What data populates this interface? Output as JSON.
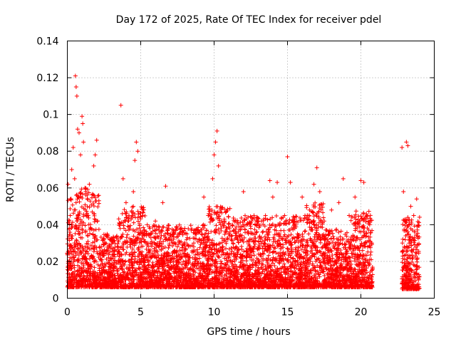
{
  "chart_data": {
    "type": "scatter",
    "title": "Day 172 of 2025, Rate Of TEC Index for receiver pdel",
    "xlabel": "GPS time / hours",
    "ylabel": "ROTI / TECUs",
    "xlim": [
      0,
      25
    ],
    "ylim": [
      0,
      0.14
    ],
    "xticks": [
      "0",
      "5",
      "10",
      "15",
      "20",
      "25"
    ],
    "yticks": [
      "0",
      "0.02",
      "0.04",
      "0.06",
      "0.08",
      "0.1",
      "0.12",
      "0.14"
    ],
    "grid": true,
    "marker": "+",
    "color": "#ff0000",
    "series": [
      {
        "points": [
          [
            0.05,
            0.062
          ],
          [
            0.1,
            0.025
          ],
          [
            0.2,
            0.045
          ],
          [
            0.3,
            0.07
          ],
          [
            0.4,
            0.082
          ],
          [
            0.5,
            0.065
          ],
          [
            0.55,
            0.121
          ],
          [
            0.6,
            0.115
          ],
          [
            0.65,
            0.11
          ],
          [
            0.7,
            0.092
          ],
          [
            0.8,
            0.09
          ],
          [
            0.9,
            0.078
          ],
          [
            1.0,
            0.099
          ],
          [
            1.05,
            0.095
          ],
          [
            1.1,
            0.085
          ],
          [
            1.2,
            0.06
          ],
          [
            1.3,
            0.045
          ],
          [
            1.5,
            0.062
          ],
          [
            1.6,
            0.038
          ],
          [
            1.8,
            0.072
          ],
          [
            1.9,
            0.078
          ],
          [
            2.0,
            0.086
          ],
          [
            2.2,
            0.028
          ],
          [
            2.5,
            0.032
          ],
          [
            2.8,
            0.022
          ],
          [
            3.0,
            0.018
          ],
          [
            3.5,
            0.025
          ],
          [
            3.65,
            0.105
          ],
          [
            3.8,
            0.065
          ],
          [
            4.0,
            0.052
          ],
          [
            4.2,
            0.045
          ],
          [
            4.5,
            0.058
          ],
          [
            4.6,
            0.075
          ],
          [
            4.7,
            0.085
          ],
          [
            4.8,
            0.08
          ],
          [
            5.2,
            0.035
          ],
          [
            5.5,
            0.03
          ],
          [
            6.0,
            0.042
          ],
          [
            6.5,
            0.052
          ],
          [
            6.7,
            0.061
          ],
          [
            7.0,
            0.032
          ],
          [
            7.5,
            0.028
          ],
          [
            8.0,
            0.038
          ],
          [
            8.5,
            0.025
          ],
          [
            9.0,
            0.036
          ],
          [
            9.3,
            0.055
          ],
          [
            9.6,
            0.045
          ],
          [
            9.9,
            0.065
          ],
          [
            10.0,
            0.078
          ],
          [
            10.1,
            0.085
          ],
          [
            10.2,
            0.091
          ],
          [
            10.3,
            0.072
          ],
          [
            10.5,
            0.042
          ],
          [
            11.0,
            0.035
          ],
          [
            11.5,
            0.028
          ],
          [
            12.0,
            0.058
          ],
          [
            12.5,
            0.038
          ],
          [
            13.0,
            0.042
          ],
          [
            13.5,
            0.045
          ],
          [
            13.8,
            0.064
          ],
          [
            14.0,
            0.055
          ],
          [
            14.3,
            0.063
          ],
          [
            14.8,
            0.045
          ],
          [
            15.0,
            0.077
          ],
          [
            15.2,
            0.063
          ],
          [
            15.5,
            0.038
          ],
          [
            16.0,
            0.055
          ],
          [
            16.5,
            0.048
          ],
          [
            16.8,
            0.062
          ],
          [
            17.0,
            0.071
          ],
          [
            17.2,
            0.058
          ],
          [
            17.5,
            0.042
          ],
          [
            18.0,
            0.048
          ],
          [
            18.5,
            0.052
          ],
          [
            18.8,
            0.065
          ],
          [
            19.2,
            0.045
          ],
          [
            19.6,
            0.055
          ],
          [
            20.0,
            0.064
          ],
          [
            20.2,
            0.063
          ],
          [
            20.4,
            0.045
          ],
          [
            20.6,
            0.04
          ],
          [
            22.8,
            0.082
          ],
          [
            22.9,
            0.058
          ],
          [
            23.1,
            0.085
          ],
          [
            23.2,
            0.083
          ],
          [
            23.4,
            0.05
          ],
          [
            23.6,
            0.045
          ],
          [
            23.8,
            0.054
          ]
        ],
        "dense_band": [
          {
            "x": [
              0.0,
              2.2
            ],
            "y": [
              0.006,
              0.06
            ]
          },
          {
            "x": [
              2.2,
              3.5
            ],
            "y": [
              0.006,
              0.035
            ]
          },
          {
            "x": [
              3.5,
              5.3
            ],
            "y": [
              0.006,
              0.05
            ]
          },
          {
            "x": [
              5.3,
              9.6
            ],
            "y": [
              0.006,
              0.04
            ]
          },
          {
            "x": [
              9.6,
              11.2
            ],
            "y": [
              0.006,
              0.05
            ]
          },
          {
            "x": [
              11.2,
              16.3
            ],
            "y": [
              0.006,
              0.045
            ]
          },
          {
            "x": [
              16.3,
              17.5
            ],
            "y": [
              0.006,
              0.052
            ]
          },
          {
            "x": [
              17.5,
              19.3
            ],
            "y": [
              0.006,
              0.038
            ]
          },
          {
            "x": [
              19.3,
              20.8
            ],
            "y": [
              0.006,
              0.048
            ]
          },
          {
            "x": [
              22.8,
              24.0
            ],
            "y": [
              0.005,
              0.045
            ]
          }
        ]
      }
    ]
  }
}
